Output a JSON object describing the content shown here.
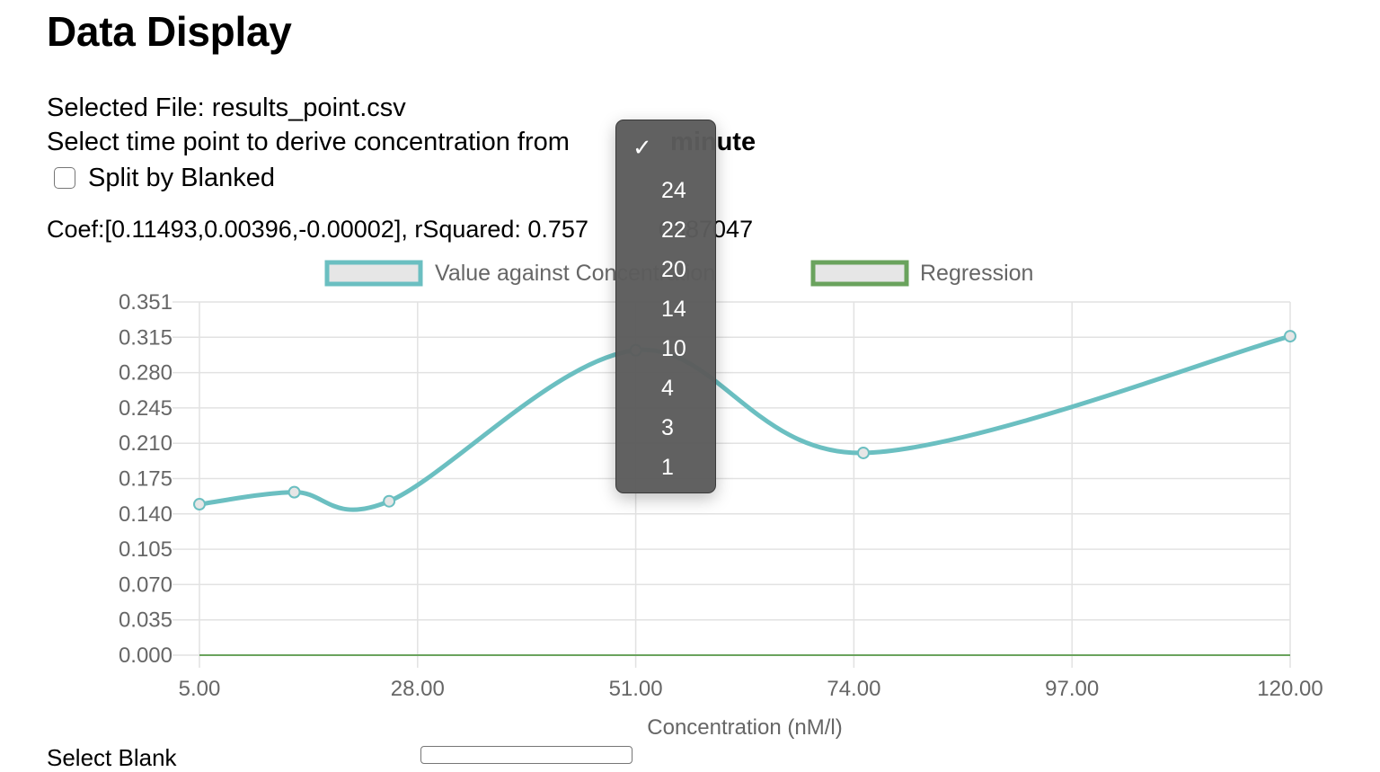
{
  "page": {
    "title": "Data Display",
    "selected_file_label": "Selected File:",
    "selected_file": "results_point.csv",
    "time_point_prompt": "Select time point to derive concentration from",
    "time_point_unit": "minute",
    "split_label": "Split by Blanked",
    "split_checked": false,
    "coef_text": "Coef:[0.11493,0.00396,-0.00002], rSquared: 0.757",
    "coef_text_tail": "0387047",
    "bottom_label": "Select Blank"
  },
  "dropdown": {
    "selected": "",
    "options": [
      "",
      "24",
      "22",
      "20",
      "14",
      "10",
      "4",
      "3",
      "1"
    ]
  },
  "chart_data": {
    "type": "line",
    "legend": [
      {
        "label": "Value against Concentration",
        "color": "#6bbfc1"
      },
      {
        "label": "Regression",
        "color": "#6aa35d"
      }
    ],
    "x": [
      5,
      15,
      25,
      51,
      75,
      120
    ],
    "series": [
      {
        "name": "Value against Concentration",
        "color": "#6bbfc1",
        "values": [
          0.15,
          0.162,
          0.153,
          0.303,
          0.201,
          0.317
        ]
      },
      {
        "name": "Regression",
        "color": "#6aa35d",
        "values": [
          0,
          0,
          0,
          0,
          0,
          0
        ]
      }
    ],
    "xticks": [
      "5.00",
      "28.00",
      "51.00",
      "74.00",
      "97.00",
      "120.00"
    ],
    "yticks": [
      "0.351",
      "0.315",
      "0.280",
      "0.245",
      "0.210",
      "0.175",
      "0.140",
      "0.105",
      "0.070",
      "0.035",
      "0.000"
    ],
    "xlim": [
      5,
      120
    ],
    "ylim": [
      0,
      0.351
    ],
    "xlabel": "Concentration (nM/l)",
    "ylabel": ""
  }
}
